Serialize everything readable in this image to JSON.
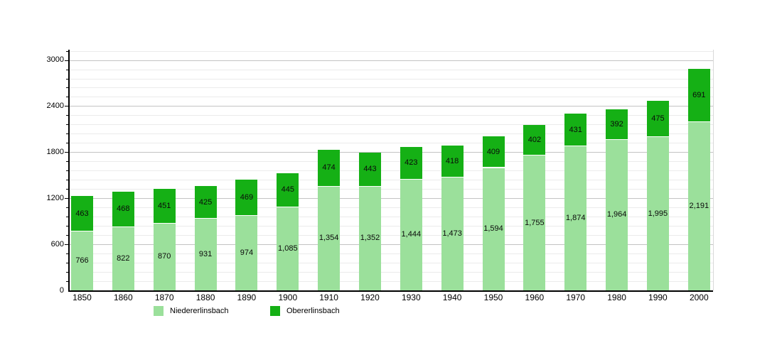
{
  "chart_data": {
    "type": "bar",
    "stacked": true,
    "title": "",
    "xlabel": "",
    "ylabel": "",
    "categories": [
      "1850",
      "1860",
      "1870",
      "1880",
      "1890",
      "1900",
      "1910",
      "1920",
      "1930",
      "1940",
      "1950",
      "1960",
      "1970",
      "1980",
      "1990",
      "2000"
    ],
    "series": [
      {
        "name": "Niedererlinsbach",
        "color": "#9be09b",
        "values": [
          766,
          822,
          870,
          931,
          974,
          1085,
          1354,
          1352,
          1444,
          1473,
          1594,
          1755,
          1874,
          1964,
          1995,
          2191
        ]
      },
      {
        "name": "Obererlinsbach",
        "color": "#15b015",
        "values": [
          463,
          468,
          451,
          425,
          469,
          445,
          474,
          443,
          423,
          418,
          409,
          402,
          431,
          392,
          475,
          691
        ]
      }
    ],
    "ylim": [
      0,
      3120
    ],
    "y_major_ticks": [
      0,
      600,
      1200,
      1800,
      2400,
      3000
    ],
    "y_minor_step": 120,
    "grid": true,
    "legend_position": "bottom",
    "value_labels": "inside-segments, thousands separated with commas"
  }
}
